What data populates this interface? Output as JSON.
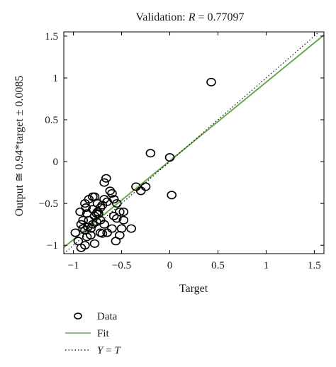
{
  "chart_data": {
    "type": "scatter",
    "title": "Validation: R = 0.77097",
    "title_prefix": "Validation: ",
    "title_var": "R",
    "title_value": " = 0.77097",
    "xlabel": "Target",
    "ylabel": "Output ≅ 0.94*target ± 0.0085",
    "xlim": [
      -1.1,
      1.6
    ],
    "ylim": [
      -1.1,
      1.55
    ],
    "xticks": [
      -1,
      -0.5,
      0,
      0.5,
      1,
      1.5
    ],
    "xtick_labels": [
      "−1",
      "−0.5",
      "0",
      "0.5",
      "1",
      "1.5"
    ],
    "yticks": [
      -1,
      -0.5,
      0,
      0.5,
      1,
      1.5
    ],
    "ytick_labels": [
      "−1",
      "−0.5",
      "0",
      "0.5",
      "1",
      "1.5"
    ],
    "grid": false,
    "legend_position": "bottom-left",
    "fit": {
      "slope": 0.94,
      "intercept": 0.0085
    },
    "series": [
      {
        "name": "Data",
        "kind": "points",
        "marker": "circle",
        "color": "#000000",
        "x": [
          -0.98,
          -0.95,
          -0.92,
          -0.9,
          -0.88,
          -0.85,
          -0.82,
          -0.78,
          -0.93,
          -0.87,
          -0.84,
          -0.8,
          -0.76,
          -0.72,
          -0.7,
          -0.88,
          -0.86,
          -0.82,
          -0.78,
          -0.75,
          -0.92,
          -0.9,
          -0.86,
          -0.8,
          -0.74,
          -0.7,
          -0.68,
          -0.65,
          -0.78,
          -0.75,
          -0.72,
          -0.68,
          -0.66,
          -0.62,
          -0.6,
          -0.58,
          -0.55,
          -0.52,
          -0.48,
          -0.88,
          -0.84,
          -0.8,
          -0.76,
          -0.72,
          -0.68,
          -0.65,
          -0.6,
          -0.56,
          -0.52,
          -0.58,
          -0.55,
          -0.48,
          -0.5,
          -0.4,
          -0.35,
          -0.3,
          -0.25,
          -0.2,
          0.0,
          0.02,
          0.43
        ],
        "y": [
          -0.85,
          -0.95,
          -1.03,
          -0.8,
          -0.82,
          -0.78,
          -0.88,
          -0.98,
          -0.6,
          -0.55,
          -0.7,
          -0.75,
          -0.72,
          -0.85,
          -0.86,
          -1.0,
          -0.9,
          -0.8,
          -0.65,
          -0.6,
          -0.75,
          -0.7,
          -0.62,
          -0.57,
          -0.62,
          -0.52,
          -0.45,
          -0.48,
          -0.42,
          -0.5,
          -0.55,
          -0.25,
          -0.2,
          -0.35,
          -0.38,
          -0.45,
          -0.5,
          -0.6,
          -0.6,
          -0.5,
          -0.45,
          -0.42,
          -0.62,
          -0.7,
          -0.75,
          -0.85,
          -0.8,
          -0.95,
          -0.88,
          -0.65,
          -0.68,
          -0.7,
          -0.8,
          -0.8,
          -0.3,
          -0.35,
          -0.3,
          0.1,
          0.05,
          -0.4,
          0.95
        ]
      },
      {
        "name": "Fit",
        "kind": "line",
        "color": "#6aa84f"
      },
      {
        "name": "Y = T",
        "kind": "line",
        "style": "dotted",
        "color": "#000000"
      }
    ]
  },
  "legend": {
    "items": [
      {
        "label": "Data"
      },
      {
        "label": "Fit"
      },
      {
        "label_var_left": "Y",
        "label_eq": " = ",
        "label_var_right": "T"
      }
    ]
  }
}
